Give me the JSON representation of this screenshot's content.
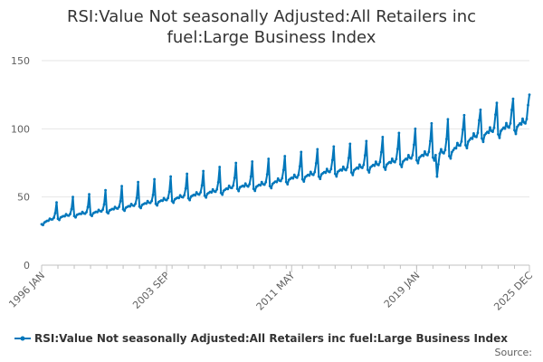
{
  "chart_data": {
    "type": "line",
    "title": "RSI:Value Not seasonally Adjusted:All Retailers inc fuel:Large Business Index",
    "title_lines": [
      "RSI:Value Not seasonally Adjusted:All Retailers inc",
      "fuel:Large Business Index"
    ],
    "xlabel": "",
    "ylabel": "",
    "ylim": [
      0,
      150
    ],
    "yticks": [
      0,
      50,
      100,
      150
    ],
    "x_start": "1996 JAN",
    "x_end": "2025 DEC",
    "xtick_labels": [
      "1996 JAN",
      "2003 SEP",
      "2011 MAY",
      "2019 JAN",
      "2025 DEC"
    ],
    "frequency": "monthly",
    "grid": true,
    "legend_position": "bottom",
    "series": [
      {
        "name": "RSI:Value Not seasonally Adjusted:All Retailers inc fuel:Large Business Index",
        "color": "#0077bb",
        "annual_points": [
          [
            "1996 JAN",
            30
          ],
          [
            "1997 JAN",
            34
          ],
          [
            "1998 JAN",
            36
          ],
          [
            "1999 JAN",
            37
          ],
          [
            "2000 JAN",
            39
          ],
          [
            "2001 JAN",
            41
          ],
          [
            "2002 JAN",
            43
          ],
          [
            "2003 JAN",
            45
          ],
          [
            "2004 JAN",
            47
          ],
          [
            "2005 JAN",
            49
          ],
          [
            "2006 JAN",
            51
          ],
          [
            "2007 JAN",
            53
          ],
          [
            "2008 JAN",
            56
          ],
          [
            "2009 JAN",
            56
          ],
          [
            "2010 JAN",
            58
          ],
          [
            "2011 JAN",
            61
          ],
          [
            "2012 JAN",
            63
          ],
          [
            "2013 JAN",
            65
          ],
          [
            "2014 JAN",
            67
          ],
          [
            "2015 JAN",
            68
          ],
          [
            "2016 JAN",
            70
          ],
          [
            "2017 JAN",
            72
          ],
          [
            "2018 JAN",
            74
          ],
          [
            "2019 JAN",
            77
          ],
          [
            "2020 JAN",
            79
          ],
          [
            "2021 JAN",
            80
          ],
          [
            "2022 JAN",
            88
          ],
          [
            "2023 JAN",
            93
          ],
          [
            "2024 JAN",
            96
          ],
          [
            "2025 JAN",
            99
          ]
        ],
        "december_peaks": [
          [
            "1996 DEC",
            46
          ],
          [
            "1997 DEC",
            50
          ],
          [
            "1998 DEC",
            52
          ],
          [
            "1999 DEC",
            55
          ],
          [
            "2000 DEC",
            58
          ],
          [
            "2001 DEC",
            61
          ],
          [
            "2002 DEC",
            63
          ],
          [
            "2003 DEC",
            65
          ],
          [
            "2004 DEC",
            67
          ],
          [
            "2005 DEC",
            69
          ],
          [
            "2006 DEC",
            72
          ],
          [
            "2007 DEC",
            75
          ],
          [
            "2008 DEC",
            76
          ],
          [
            "2009 DEC",
            78
          ],
          [
            "2010 DEC",
            80
          ],
          [
            "2011 DEC",
            83
          ],
          [
            "2012 DEC",
            85
          ],
          [
            "2013 DEC",
            87
          ],
          [
            "2014 DEC",
            89
          ],
          [
            "2015 DEC",
            91
          ],
          [
            "2016 DEC",
            94
          ],
          [
            "2017 DEC",
            97
          ],
          [
            "2018 DEC",
            100
          ],
          [
            "2019 DEC",
            104
          ],
          [
            "2020 DEC",
            107
          ],
          [
            "2021 DEC",
            110
          ],
          [
            "2022 DEC",
            114
          ],
          [
            "2023 DEC",
            119
          ],
          [
            "2024 DEC",
            122
          ],
          [
            "2025 DEC",
            125
          ]
        ],
        "covid_dip": [
          [
            "2020 APR",
            65
          ],
          [
            "2020 MAY",
            74
          ]
        ]
      }
    ]
  },
  "legend": {
    "label": "RSI:Value Not seasonally Adjusted:All Retailers inc fuel:Large Business Index"
  },
  "source_label": "Source:"
}
